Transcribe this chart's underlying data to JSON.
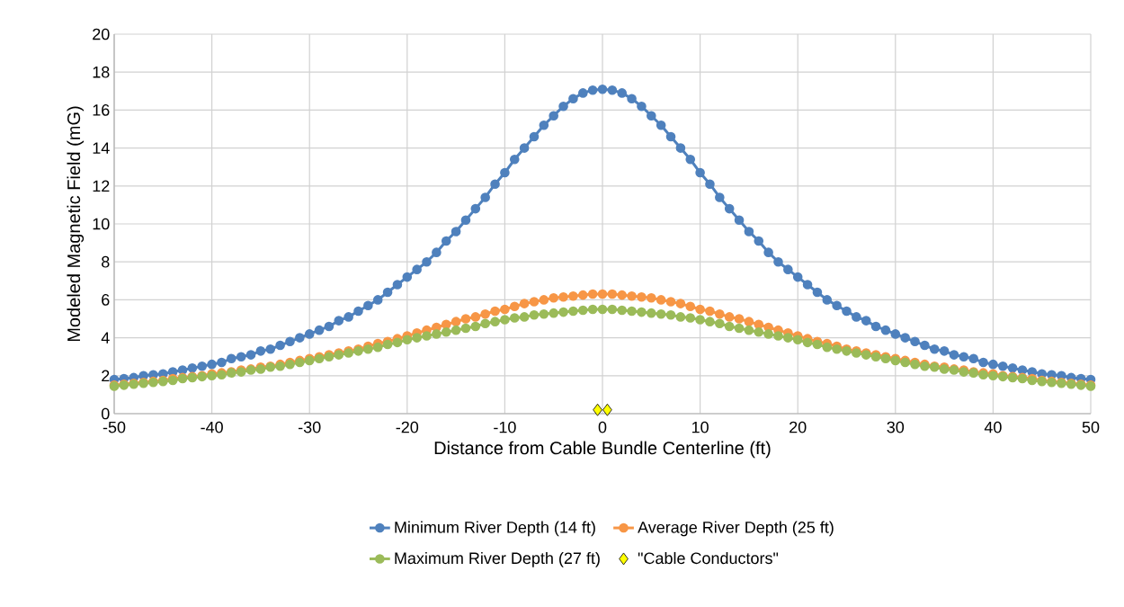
{
  "chart_data": {
    "type": "line",
    "xlabel": "Distance from Cable Bundle Centerline (ft)",
    "ylabel": "Modeled Magnetic Field (mG)",
    "x": [
      -50,
      -49,
      -48,
      -47,
      -46,
      -45,
      -44,
      -43,
      -42,
      -41,
      -40,
      -39,
      -38,
      -37,
      -36,
      -35,
      -34,
      -33,
      -32,
      -31,
      -30,
      -29,
      -28,
      -27,
      -26,
      -25,
      -24,
      -23,
      -22,
      -21,
      -20,
      -19,
      -18,
      -17,
      -16,
      -15,
      -14,
      -13,
      -12,
      -11,
      -10,
      -9,
      -8,
      -7,
      -6,
      -5,
      -4,
      -3,
      -2,
      -1,
      0,
      1,
      2,
      3,
      4,
      5,
      6,
      7,
      8,
      9,
      10,
      11,
      12,
      13,
      14,
      15,
      16,
      17,
      18,
      19,
      20,
      21,
      22,
      23,
      24,
      25,
      26,
      27,
      28,
      29,
      30,
      31,
      32,
      33,
      34,
      35,
      36,
      37,
      38,
      39,
      40,
      41,
      42,
      43,
      44,
      45,
      46,
      47,
      48,
      49,
      50
    ],
    "xlim": [
      -50,
      50
    ],
    "xticks": [
      -50,
      -40,
      -30,
      -20,
      -10,
      0,
      10,
      20,
      30,
      40,
      50
    ],
    "ylim": [
      0,
      20
    ],
    "yticks": [
      0,
      2,
      4,
      6,
      8,
      10,
      12,
      14,
      16,
      18,
      20
    ],
    "grid": true,
    "legend": "bottom",
    "marker": "circle",
    "series": [
      {
        "name": "Minimum River Depth (14 ft)",
        "color": "#4f81bd",
        "values": [
          1.8,
          1.85,
          1.9,
          2.0,
          2.05,
          2.1,
          2.2,
          2.3,
          2.4,
          2.5,
          2.6,
          2.7,
          2.9,
          3.0,
          3.1,
          3.3,
          3.4,
          3.6,
          3.8,
          4.0,
          4.2,
          4.4,
          4.6,
          4.9,
          5.1,
          5.4,
          5.7,
          6.0,
          6.4,
          6.8,
          7.2,
          7.6,
          8.0,
          8.5,
          9.1,
          9.6,
          10.2,
          10.8,
          11.4,
          12.1,
          12.7,
          13.4,
          14.0,
          14.6,
          15.2,
          15.7,
          16.2,
          16.6,
          16.9,
          17.05,
          17.1,
          17.05,
          16.9,
          16.6,
          16.2,
          15.7,
          15.2,
          14.6,
          14.0,
          13.4,
          12.7,
          12.1,
          11.4,
          10.8,
          10.2,
          9.6,
          9.1,
          8.5,
          8.0,
          7.6,
          7.2,
          6.8,
          6.4,
          6.0,
          5.7,
          5.4,
          5.1,
          4.9,
          4.6,
          4.4,
          4.2,
          4.0,
          3.8,
          3.6,
          3.4,
          3.3,
          3.1,
          3.0,
          2.9,
          2.7,
          2.6,
          2.5,
          2.4,
          2.3,
          2.2,
          2.1,
          2.05,
          2.0,
          1.9,
          1.85,
          1.8
        ]
      },
      {
        "name": "Average River Depth (25 ft)",
        "color": "#f79646",
        "values": [
          1.5,
          1.55,
          1.6,
          1.65,
          1.7,
          1.75,
          1.85,
          1.9,
          1.95,
          2.0,
          2.1,
          2.15,
          2.2,
          2.3,
          2.35,
          2.45,
          2.5,
          2.6,
          2.7,
          2.8,
          2.9,
          3.0,
          3.1,
          3.2,
          3.3,
          3.4,
          3.55,
          3.7,
          3.8,
          3.95,
          4.1,
          4.25,
          4.4,
          4.55,
          4.7,
          4.85,
          5.0,
          5.1,
          5.25,
          5.4,
          5.5,
          5.65,
          5.8,
          5.9,
          6.0,
          6.1,
          6.15,
          6.2,
          6.25,
          6.3,
          6.3,
          6.3,
          6.25,
          6.2,
          6.15,
          6.1,
          6.0,
          5.9,
          5.8,
          5.65,
          5.5,
          5.4,
          5.25,
          5.1,
          5.0,
          4.85,
          4.7,
          4.55,
          4.4,
          4.25,
          4.1,
          3.95,
          3.8,
          3.7,
          3.55,
          3.4,
          3.3,
          3.2,
          3.1,
          3.0,
          2.9,
          2.8,
          2.7,
          2.6,
          2.5,
          2.45,
          2.35,
          2.3,
          2.2,
          2.15,
          2.1,
          2.0,
          1.95,
          1.9,
          1.85,
          1.75,
          1.7,
          1.65,
          1.6,
          1.55,
          1.5
        ]
      },
      {
        "name": "Maximum River Depth (27 ft)",
        "color": "#9bbb59",
        "values": [
          1.45,
          1.5,
          1.55,
          1.6,
          1.65,
          1.7,
          1.75,
          1.85,
          1.9,
          1.95,
          2.0,
          2.05,
          2.15,
          2.2,
          2.3,
          2.35,
          2.45,
          2.5,
          2.6,
          2.7,
          2.8,
          2.9,
          3.0,
          3.1,
          3.2,
          3.3,
          3.4,
          3.5,
          3.65,
          3.75,
          3.9,
          4.0,
          4.1,
          4.2,
          4.3,
          4.4,
          4.5,
          4.6,
          4.75,
          4.85,
          4.95,
          5.05,
          5.1,
          5.2,
          5.25,
          5.3,
          5.35,
          5.4,
          5.45,
          5.5,
          5.5,
          5.5,
          5.45,
          5.4,
          5.35,
          5.3,
          5.25,
          5.2,
          5.1,
          5.05,
          4.95,
          4.85,
          4.75,
          4.6,
          4.5,
          4.4,
          4.3,
          4.2,
          4.1,
          4.0,
          3.9,
          3.75,
          3.65,
          3.5,
          3.4,
          3.3,
          3.2,
          3.1,
          3.0,
          2.9,
          2.8,
          2.7,
          2.6,
          2.5,
          2.45,
          2.35,
          2.3,
          2.2,
          2.15,
          2.05,
          2.0,
          1.95,
          1.9,
          1.85,
          1.75,
          1.7,
          1.65,
          1.6,
          1.55,
          1.5,
          1.45
        ]
      },
      {
        "name": "\"Cable Conductors\"",
        "type": "scatter",
        "marker": "diamond",
        "color": "#ffff00",
        "x": [
          -0.5,
          0.5
        ],
        "values": [
          0.2,
          0.2
        ]
      }
    ]
  }
}
